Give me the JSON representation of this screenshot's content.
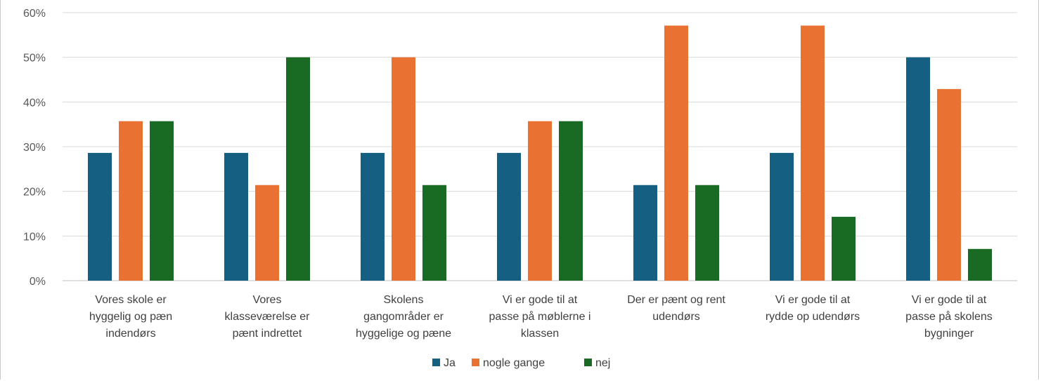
{
  "chart_data": {
    "type": "bar",
    "title": "",
    "xlabel": "",
    "ylabel": "",
    "ylim": [
      0,
      0.6
    ],
    "yticks": [
      "0%",
      "10%",
      "20%",
      "30%",
      "40%",
      "50%",
      "60%"
    ],
    "grid": true,
    "legend_position": "bottom",
    "categories": [
      [
        "Vores skole er",
        "hyggelig og pæn",
        "indendørs"
      ],
      [
        "Vores",
        "klasseværelse er",
        "pænt indrettet"
      ],
      [
        "Skolens",
        "gangområder er",
        "hyggelige og pæne"
      ],
      [
        "Vi er gode til at",
        "passe på møblerne i",
        "klassen"
      ],
      [
        "Der er pænt og rent",
        "udendørs"
      ],
      [
        "Vi er gode til at",
        "rydde op udendørs"
      ],
      [
        "Vi er gode til at",
        "passe på skolens",
        "bygninger"
      ]
    ],
    "series": [
      {
        "name": "Ja",
        "color": "#156082",
        "values": [
          0.286,
          0.286,
          0.286,
          0.286,
          0.214,
          0.286,
          0.5
        ]
      },
      {
        "name": "nogle gange",
        "color": "#E97132",
        "values": [
          0.357,
          0.214,
          0.5,
          0.357,
          0.571,
          0.571,
          0.429
        ]
      },
      {
        "name": "nej",
        "color": "#196B24",
        "values": [
          0.357,
          0.5,
          0.214,
          0.357,
          0.214,
          0.143,
          0.071
        ]
      }
    ]
  }
}
